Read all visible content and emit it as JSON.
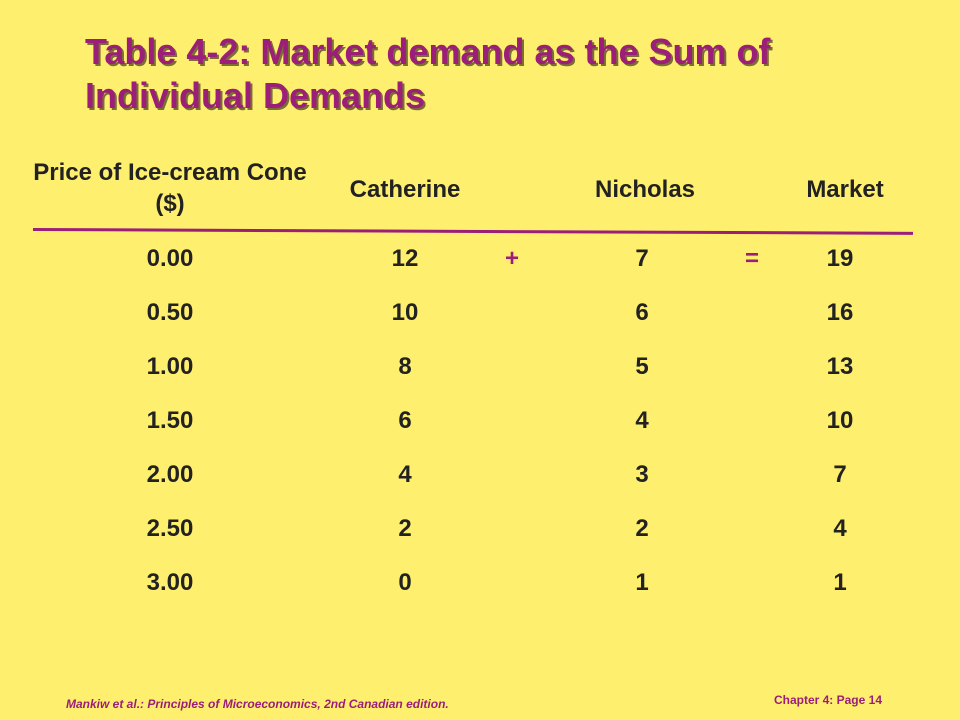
{
  "title": "Table 4-2: Market demand as the Sum of Individual Demands",
  "table": {
    "headers": {
      "price": "Price of Ice-cream Cone ($)",
      "catherine": "Catherine",
      "nicholas": "Nicholas",
      "market": "Market"
    },
    "plus": "+",
    "equals": "=",
    "rows": [
      {
        "price": "0.00",
        "catherine": "12",
        "nicholas": "7",
        "market": "19"
      },
      {
        "price": "0.50",
        "catherine": "10",
        "nicholas": "6",
        "market": "16"
      },
      {
        "price": "1.00",
        "catherine": "8",
        "nicholas": "5",
        "market": "13"
      },
      {
        "price": "1.50",
        "catherine": "6",
        "nicholas": "4",
        "market": "10"
      },
      {
        "price": "2.00",
        "catherine": "4",
        "nicholas": "3",
        "market": "7"
      },
      {
        "price": "2.50",
        "catherine": "2",
        "nicholas": "2",
        "market": "4"
      },
      {
        "price": "3.00",
        "catherine": "0",
        "nicholas": "1",
        "market": "1"
      }
    ]
  },
  "footer": {
    "citation": "Mankiw et al.: Principles of Microeconomics, 2nd Canadian edition.",
    "page": "Chapter 4: Page 14"
  },
  "colors": {
    "background": "#FFEF6F",
    "accent": "#9B1E78",
    "text": "#222222"
  }
}
